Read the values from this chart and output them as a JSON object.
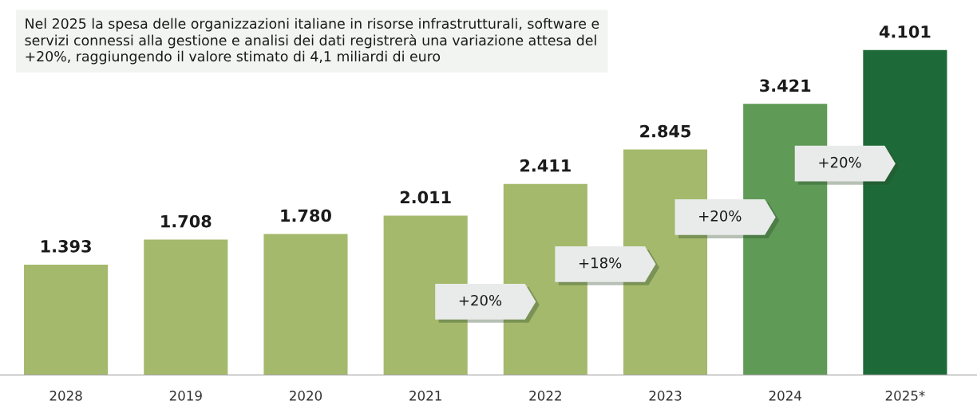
{
  "chart_data": {
    "type": "bar",
    "title": "Nel 2025 la spesa delle organizzazioni italiane in risorse infrastrutturali, software e servizi connessi alla gestione e analisi dei dati registrerà una variazione attesa del +20%, raggiungendo il valore stimato di 4,1 miliardi di euro",
    "categories": [
      "2028",
      "2019",
      "2020",
      "2021",
      "2022",
      "2023",
      "2024",
      "2025*"
    ],
    "values": [
      1393,
      1708,
      1780,
      2011,
      2411,
      2845,
      3421,
      4101
    ],
    "value_labels": [
      "1.393",
      "1.708",
      "1.780",
      "2.011",
      "2.411",
      "2.845",
      "3.421",
      "4.101"
    ],
    "colors": [
      "#a4b96c",
      "#a4b96c",
      "#a4b96c",
      "#a4b96c",
      "#a4b96c",
      "#a4b96c",
      "#5f9a57",
      "#1d6a38"
    ],
    "annotations": [
      "+20%",
      "+18%",
      "+20%",
      "+20%"
    ],
    "grid": false,
    "legend": false
  }
}
